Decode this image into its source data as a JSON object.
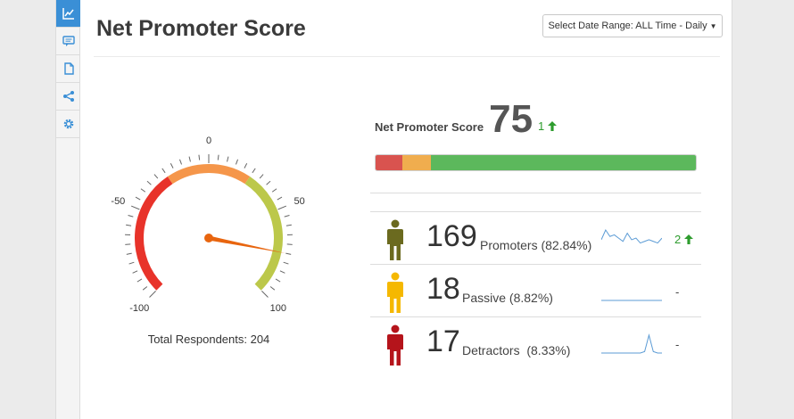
{
  "sidebar": {
    "items": [
      {
        "icon": "line-chart-icon",
        "active": true
      },
      {
        "icon": "comment-icon",
        "active": false
      },
      {
        "icon": "document-icon",
        "active": false
      },
      {
        "icon": "share-icon",
        "active": false
      },
      {
        "icon": "gear-icon",
        "active": false
      }
    ]
  },
  "header": {
    "title": "Net Promoter Score",
    "date_range_label": "Select Date Range: ALL Time - Daily"
  },
  "gauge": {
    "min_label": "-100",
    "max_label": "100",
    "tick_labels": [
      "-100",
      "-50",
      "0",
      "50",
      "100"
    ],
    "value": 75,
    "bands": [
      {
        "from": -100,
        "to": -25,
        "color": "#e8332a"
      },
      {
        "from": -25,
        "to": 25,
        "color": "#f5964a"
      },
      {
        "from": 25,
        "to": 100,
        "color": "#bcc84a"
      }
    ],
    "needle_color": "#e8650f",
    "total_respondents": "Total Respondents: 204"
  },
  "nps": {
    "label": "Net Promoter Score",
    "value": "75",
    "change": "1",
    "change_color": "#2e9c2e",
    "bar": [
      {
        "name": "detractors",
        "percent": 8.33,
        "color": "#d9534f"
      },
      {
        "name": "passive",
        "percent": 8.82,
        "color": "#f0ad4e"
      },
      {
        "name": "promoters",
        "percent": 82.84,
        "color": "#5cb85c"
      }
    ]
  },
  "categories": [
    {
      "count": "169",
      "label": "Promoters (82.84%)",
      "color": "#6b6a1f",
      "change": "2",
      "sparkline": [
        5,
        11,
        7,
        8,
        6,
        4,
        9,
        5,
        6,
        3,
        4,
        5,
        4,
        3,
        6
      ]
    },
    {
      "count": "18",
      "label": "Passive (8.82%)",
      "color": "#f5b800",
      "change": "-",
      "sparkline": [
        0,
        0,
        0,
        0,
        0,
        0,
        0,
        0,
        0,
        0,
        0,
        0,
        0,
        0,
        0
      ]
    },
    {
      "count": "17",
      "label": "Detractors  (8.33%)",
      "color": "#b5141b",
      "change": "-",
      "sparkline": [
        0,
        0,
        0,
        0,
        0,
        0,
        0,
        0,
        0,
        0,
        1,
        12,
        1,
        0,
        0
      ]
    }
  ]
}
